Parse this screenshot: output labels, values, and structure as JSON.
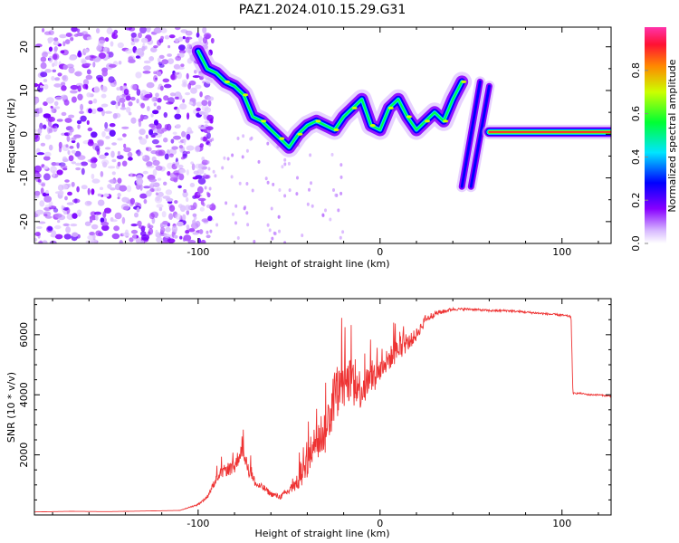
{
  "title": "PAZ1.2024.010.15.29.G31",
  "chart_data": [
    {
      "type": "heatmap",
      "name": "spectrogram",
      "xlabel": "Height of straight line (km)",
      "ylabel": "Frequency (Hz)",
      "xlim": [
        -190,
        127
      ],
      "ylim": [
        -25,
        24.5
      ],
      "xticks": [
        -100,
        0,
        100
      ],
      "yticks": [
        -20,
        -10,
        0,
        10,
        20
      ],
      "colorbar": {
        "label": "Normalized spectral amplitude",
        "range": [
          0,
          1
        ],
        "ticks": [
          "0.0",
          "0.2",
          "0.4",
          "0.6",
          "0.8"
        ]
      },
      "noise_region_x": [
        -190,
        -98
      ],
      "track": {
        "x": [
          -100,
          -95,
          -90,
          -85,
          -80,
          -75,
          -70,
          -65,
          -60,
          -55,
          -50,
          -45,
          -40,
          -35,
          -30,
          -25,
          -20,
          -15,
          -10,
          -5,
          0,
          5,
          10,
          15,
          20,
          25,
          30,
          35,
          40,
          45
        ],
        "y": [
          19,
          15,
          14,
          12,
          11,
          9,
          4,
          3,
          1,
          -1,
          -3,
          0,
          2,
          3,
          2,
          1,
          4,
          6,
          8,
          2,
          1,
          6,
          8,
          4,
          1,
          3,
          5,
          3,
          8,
          12
        ]
      },
      "chirps": [
        {
          "x": [
            45,
            55
          ],
          "y": [
            -12,
            12
          ]
        },
        {
          "x": [
            50,
            60
          ],
          "y": [
            -12,
            11
          ]
        }
      ],
      "carrier": {
        "x": [
          60,
          127
        ],
        "y": [
          0.5,
          0.5
        ]
      }
    },
    {
      "type": "line",
      "name": "snr",
      "xlabel": "Height of straight line (km)",
      "ylabel": "SNR (10 * v/v)",
      "xlim": [
        -190,
        127
      ],
      "ylim": [
        0,
        7200
      ],
      "xticks": [
        -100,
        0,
        100
      ],
      "yticks": [
        2000,
        4000,
        6000
      ],
      "color": "#ee3333",
      "x": [
        -190,
        -170,
        -150,
        -130,
        -110,
        -100,
        -95,
        -90,
        -85,
        -80,
        -76,
        -72,
        -68,
        -64,
        -60,
        -55,
        -50,
        -45,
        -40,
        -35,
        -30,
        -25,
        -20,
        -15,
        -10,
        -5,
        0,
        5,
        10,
        15,
        20,
        25,
        30,
        40,
        50,
        60,
        70,
        80,
        90,
        100,
        105,
        106,
        110,
        115,
        120,
        127
      ],
      "y": [
        100,
        120,
        110,
        130,
        150,
        350,
        600,
        1200,
        1500,
        1600,
        2200,
        1500,
        1000,
        900,
        700,
        600,
        800,
        1100,
        1600,
        2600,
        2800,
        4000,
        4300,
        4600,
        4100,
        4600,
        4800,
        5200,
        5500,
        5700,
        6000,
        6500,
        6700,
        6850,
        6850,
        6800,
        6800,
        6750,
        6700,
        6650,
        6600,
        4050,
        4050,
        4000,
        4000,
        3950
      ],
      "spike_amplitude": [
        0,
        0,
        0,
        0,
        0,
        100,
        200,
        500,
        700,
        900,
        900,
        800,
        400,
        400,
        300,
        300,
        500,
        900,
        1400,
        2200,
        2600,
        2800,
        2600,
        2400,
        2200,
        1800,
        1400,
        1300,
        1200,
        900,
        700,
        500,
        300,
        150,
        120,
        120,
        120,
        120,
        120,
        120,
        120,
        80,
        80,
        80,
        80,
        80
      ]
    }
  ]
}
